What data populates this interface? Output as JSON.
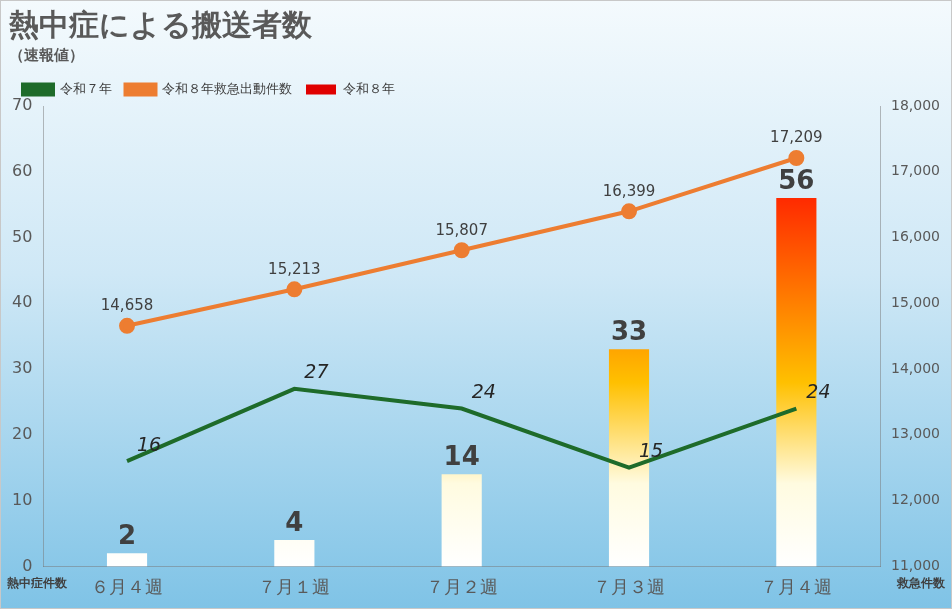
{
  "chart_data": {
    "type": "bar",
    "title": "熱中症による搬送者数",
    "subtitle": "（速報値）",
    "categories": [
      "６月４週",
      "７月１週",
      "７月２週",
      "７月３週",
      "７月４週"
    ],
    "series": [
      {
        "name": "令和８年",
        "type": "bar",
        "color": "#ffc000",
        "values": [
          2,
          4,
          14,
          33,
          56
        ]
      },
      {
        "name": "令和７年",
        "type": "line",
        "color": "#1e6b2a",
        "marker": "none",
        "values": [
          16,
          27,
          24,
          15,
          24
        ]
      },
      {
        "name": "令和８年救急出動件数",
        "type": "line",
        "color": "#ed7d31",
        "marker": "circle",
        "axis": "y2",
        "values": [
          14658,
          15213,
          15807,
          16399,
          17209
        ],
        "value_labels": [
          "14,658",
          "15,213",
          "15,807",
          "16,399",
          "17,209"
        ]
      }
    ],
    "ylabel": "熱中症件数",
    "y2label": "救急件数",
    "ylim": [
      0,
      70
    ],
    "yticks": [
      0,
      10,
      20,
      30,
      40,
      50,
      60,
      70
    ],
    "y2lim": [
      11000,
      18000
    ],
    "y2ticks": [
      {
        "value": 11000,
        "label": "11,000"
      },
      {
        "value": 12000,
        "label": "12,000"
      },
      {
        "value": 13000,
        "label": "13,000"
      },
      {
        "value": 14000,
        "label": "14,000"
      },
      {
        "value": 15000,
        "label": "15,000"
      },
      {
        "value": 16000,
        "label": "16,000"
      },
      {
        "value": 17000,
        "label": "17,000"
      },
      {
        "value": 18000,
        "label": "18,000"
      }
    ],
    "grid": false,
    "legend": "top-left",
    "data_labels": true
  }
}
